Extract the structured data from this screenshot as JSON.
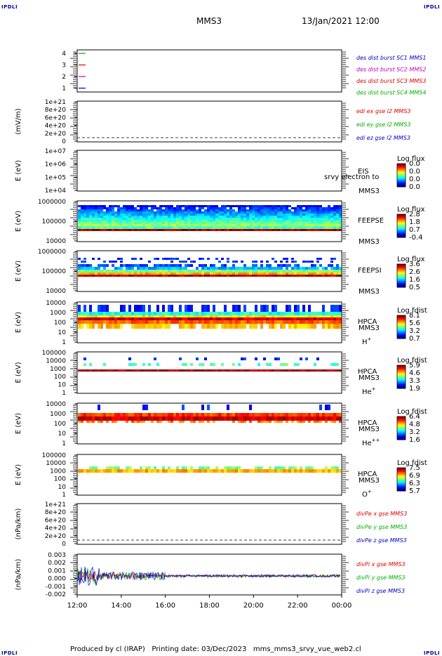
{
  "header": {
    "corner_label": "IPDLI",
    "title": "MMS3",
    "time": "13/Jan/2021 12:00"
  },
  "footer": {
    "produced_by": "Produced by cl (IRAP)",
    "printing_date": "Printing date: 03/Dec/2023",
    "filename": "mms_mms3_srvy_vue_web2.cl"
  },
  "colors": {
    "red": "#e00000",
    "green": "#00b000",
    "blue": "#0000c0",
    "magenta": "#c000c0"
  },
  "chart_data": {
    "type": "heatmap",
    "x_ticks": [
      "12:00",
      "14:00",
      "16:00",
      "18:00",
      "20:00",
      "22:00",
      "00:00"
    ],
    "xlim_hours": [
      12,
      24
    ],
    "panels": [
      {
        "id": "burst",
        "type": "line",
        "y_ticks": [
          "4",
          "3",
          "2",
          "1"
        ],
        "legend": [
          {
            "text": "des dist burst SC1 MMS1",
            "color": "blue"
          },
          {
            "text": "des dist burst SC2 MMS2",
            "color": "magenta"
          },
          {
            "text": "des dist burst SC3 MMS3",
            "color": "red"
          },
          {
            "text": "des dist burst SC4 MMS4",
            "color": "green"
          }
        ]
      },
      {
        "id": "edi",
        "type": "line",
        "ylabel": "(mV/m)",
        "y_ticks": [
          "1e+21",
          "8e+20",
          "6e+20",
          "4e+20",
          "2e+20",
          "0"
        ],
        "legend": [
          {
            "text": "edi ex gse l2 MMS3",
            "color": "red"
          },
          {
            "text": "edi ey gse l2 MMS3",
            "color": "green"
          },
          {
            "text": "edi ez gse l2 MMS3",
            "color": "blue"
          }
        ]
      },
      {
        "id": "eis",
        "type": "heatmap",
        "ylabel": "E (eV)",
        "y_ticks": [
          "1e+07",
          "1e+06",
          "1e+05",
          "1e+04"
        ],
        "instrument": "EIS",
        "sc": "MMS3",
        "overlay_text": "srvy electron to",
        "cb_title": "Log flux",
        "cb_ticks": [
          "0.0",
          "0.0",
          "0.0",
          "0.0"
        ]
      },
      {
        "id": "feepse",
        "type": "heatmap",
        "ylabel": "E (eV)",
        "y_ticks": [
          "1000000",
          "100000",
          "10000"
        ],
        "instrument": "FEEPSE",
        "sc": "MMS3",
        "cb_title": "Log flux",
        "cb_ticks": [
          "2.8",
          "1.8",
          "0.7",
          "-0.4"
        ]
      },
      {
        "id": "feepsi",
        "type": "heatmap",
        "ylabel": "E (eV)",
        "y_ticks": [
          "1000000",
          "100000",
          "10000"
        ],
        "instrument": "FEEPSI",
        "sc": "MMS3",
        "cb_title": "Log flux",
        "cb_ticks": [
          "3.6",
          "2.6",
          "1.6",
          "0.5"
        ]
      },
      {
        "id": "hpca_h",
        "type": "heatmap",
        "ylabel": "E (eV)",
        "y_ticks": [
          "10000",
          "1000",
          "100",
          "10",
          "1"
        ],
        "instrument": "HPCA",
        "sc": "MMS3",
        "species": "H",
        "charge": "+",
        "cb_title": "Log fdist",
        "cb_ticks": [
          "8.1",
          "5.6",
          "3.2",
          "0.7"
        ]
      },
      {
        "id": "hpca_he",
        "type": "heatmap",
        "ylabel": "E (eV)",
        "y_ticks": [
          "100000",
          "10000",
          "1000",
          "100",
          "10",
          "1"
        ],
        "instrument": "HPCA",
        "sc": "MMS3",
        "species": "He",
        "charge": "+",
        "cb_title": "Log fdist",
        "cb_ticks": [
          "5.9",
          "4.6",
          "3.3",
          "1.9"
        ]
      },
      {
        "id": "hpca_he2",
        "type": "heatmap",
        "ylabel": "E (eV)",
        "y_ticks": [
          "10000",
          "1000",
          "100",
          "10",
          "1"
        ],
        "instrument": "HPCA",
        "sc": "MMS3",
        "species": "He",
        "charge": "++",
        "cb_title": "Log fdist",
        "cb_ticks": [
          "6.4",
          "4.8",
          "3.2",
          "1.6"
        ]
      },
      {
        "id": "hpca_o",
        "type": "heatmap",
        "ylabel": "E (eV)",
        "y_ticks": [
          "100000",
          "10000",
          "1000",
          "100",
          "10",
          "1"
        ],
        "instrument": "HPCA",
        "sc": "MMS3",
        "species": "O",
        "charge": "+",
        "cb_title": "Log fdist",
        "cb_ticks": [
          "7.5",
          "6.9",
          "6.3",
          "5.7"
        ]
      },
      {
        "id": "divpe",
        "type": "line",
        "ylabel": "(nPa/km)",
        "y_ticks": [
          "1e+21",
          "8e+20",
          "6e+20",
          "4e+20",
          "2e+20",
          "0"
        ],
        "legend": [
          {
            "text": "divPe x gse MMS3",
            "color": "red"
          },
          {
            "text": "divPe y gse MMS3",
            "color": "green"
          },
          {
            "text": "divPe z gse MMS3",
            "color": "blue"
          }
        ]
      },
      {
        "id": "divpi",
        "type": "line",
        "ylabel": "(nPa/km)",
        "y_ticks": [
          "0.003",
          "0.002",
          "0.001",
          "0.000",
          "-0.001",
          "-0.002"
        ],
        "legend": [
          {
            "text": "divPi x gse MMS3",
            "color": "red"
          },
          {
            "text": "divPi y gse MMS3",
            "color": "green"
          },
          {
            "text": "divPi z gse MMS3",
            "color": "blue"
          }
        ]
      }
    ]
  }
}
